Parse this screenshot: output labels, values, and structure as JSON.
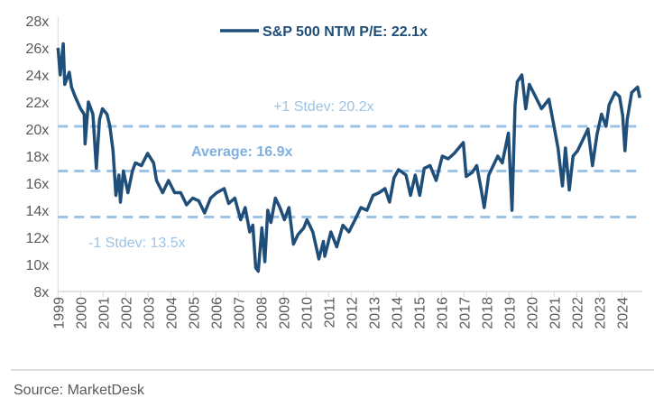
{
  "chart_data": {
    "type": "line",
    "title": "",
    "xlabel": "",
    "ylabel": "",
    "xlim": [
      1999,
      2025
    ],
    "ylim": [
      8,
      28
    ],
    "grid": false,
    "legend_placement": "top-center",
    "y_ticks": [
      "8x",
      "10x",
      "12x",
      "14x",
      "16x",
      "18x",
      "20x",
      "22x",
      "24x",
      "26x",
      "28x"
    ],
    "x_ticks": [
      "1999",
      "2000",
      "2001",
      "2002",
      "2003",
      "2004",
      "2005",
      "2006",
      "2007",
      "2008",
      "2009",
      "2010",
      "2011",
      "2012",
      "2013",
      "2014",
      "2015",
      "2016",
      "2017",
      "2018",
      "2019",
      "2020",
      "2021",
      "2022",
      "2023",
      "2024"
    ],
    "series": [
      {
        "name": "S&P 500 NTM P/E: 22.1x",
        "color": "#1f4e79",
        "x": [
          1999.0,
          1999.1,
          1999.23,
          1999.3,
          1999.5,
          1999.6,
          1999.76,
          2000.0,
          2000.16,
          2000.2,
          2000.35,
          2000.55,
          2000.7,
          2000.84,
          2000.97,
          2001.17,
          2001.3,
          2001.44,
          2001.57,
          2001.7,
          2001.77,
          2001.9,
          2002.1,
          2002.3,
          2002.43,
          2002.7,
          2002.97,
          2003.24,
          2003.37,
          2003.64,
          2003.9,
          2004.17,
          2004.44,
          2004.7,
          2004.97,
          2005.24,
          2005.5,
          2005.77,
          2006.04,
          2006.37,
          2006.57,
          2006.84,
          2007.1,
          2007.3,
          2007.5,
          2007.64,
          2007.77,
          2007.88,
          2008.04,
          2008.17,
          2008.3,
          2008.44,
          2008.64,
          2008.84,
          2009.04,
          2009.24,
          2009.44,
          2009.64,
          2009.9,
          2010.04,
          2010.3,
          2010.57,
          2010.77,
          2010.83,
          2011.1,
          2011.36,
          2011.63,
          2011.9,
          2012.17,
          2012.43,
          2012.7,
          2012.97,
          2013.24,
          2013.5,
          2013.7,
          2013.9,
          2014.1,
          2014.43,
          2014.63,
          2014.84,
          2015.04,
          2015.24,
          2015.5,
          2015.77,
          2016.04,
          2016.3,
          2016.57,
          2016.97,
          2017.1,
          2017.37,
          2017.57,
          2017.77,
          2017.9,
          2018.1,
          2018.3,
          2018.5,
          2018.7,
          2018.97,
          2019.13,
          2019.27,
          2019.37,
          2019.57,
          2019.74,
          2019.9,
          2020.17,
          2020.44,
          2020.77,
          2020.97,
          2021.17,
          2021.37,
          2021.5,
          2021.67,
          2021.84,
          2022.04,
          2022.3,
          2022.5,
          2022.7,
          2022.9,
          2023.1,
          2023.3,
          2023.44,
          2023.7,
          2023.9,
          2024.04,
          2024.14,
          2024.24,
          2024.44,
          2024.7,
          2024.8
        ],
        "values": [
          26.0,
          24.0,
          26.3,
          23.3,
          24.2,
          23.1,
          22.4,
          21.5,
          21.1,
          18.9,
          22.0,
          21.1,
          17.1,
          20.7,
          21.5,
          21.1,
          20.2,
          18.4,
          15.1,
          16.6,
          14.6,
          16.9,
          15.3,
          16.9,
          17.5,
          17.3,
          18.2,
          17.5,
          16.2,
          15.3,
          16.2,
          15.3,
          15.3,
          14.4,
          14.9,
          14.7,
          13.8,
          14.9,
          15.3,
          15.6,
          14.5,
          14.9,
          13.3,
          14.2,
          12.4,
          12.9,
          9.75,
          9.5,
          12.7,
          10.2,
          14.0,
          13.1,
          14.9,
          14.2,
          13.3,
          14.2,
          11.5,
          12.2,
          12.7,
          13.3,
          12.4,
          10.4,
          11.7,
          10.6,
          12.4,
          11.3,
          12.9,
          12.4,
          13.3,
          14.2,
          14.0,
          15.1,
          15.3,
          15.6,
          14.6,
          16.4,
          17.0,
          16.6,
          15.1,
          16.6,
          15.1,
          17.1,
          17.3,
          16.2,
          18.0,
          17.8,
          18.2,
          19.0,
          16.5,
          16.8,
          17.3,
          15.5,
          14.2,
          16.6,
          17.3,
          18.0,
          17.5,
          19.7,
          14.0,
          21.8,
          23.5,
          24.0,
          21.5,
          23.3,
          22.4,
          21.5,
          22.2,
          20.4,
          18.6,
          15.8,
          18.6,
          15.5,
          18.0,
          18.4,
          19.3,
          20.0,
          17.3,
          19.6,
          21.1,
          20.2,
          21.8,
          22.7,
          22.4,
          21.0,
          18.4,
          20.7,
          22.7,
          23.1,
          22.3
        ]
      }
    ],
    "reference_lines": [
      {
        "label": "+1 Stdev: 20.2x",
        "value": 20.2,
        "color": "#9dc3e6",
        "style": "dashed"
      },
      {
        "label": "Average: 16.9x",
        "value": 16.9,
        "color": "#9dc3e6",
        "style": "dashed"
      },
      {
        "label": "-1 Stdev: 13.5x",
        "value": 13.5,
        "color": "#9dc3e6",
        "style": "dashed"
      }
    ]
  },
  "source": "Source: MarketDesk"
}
